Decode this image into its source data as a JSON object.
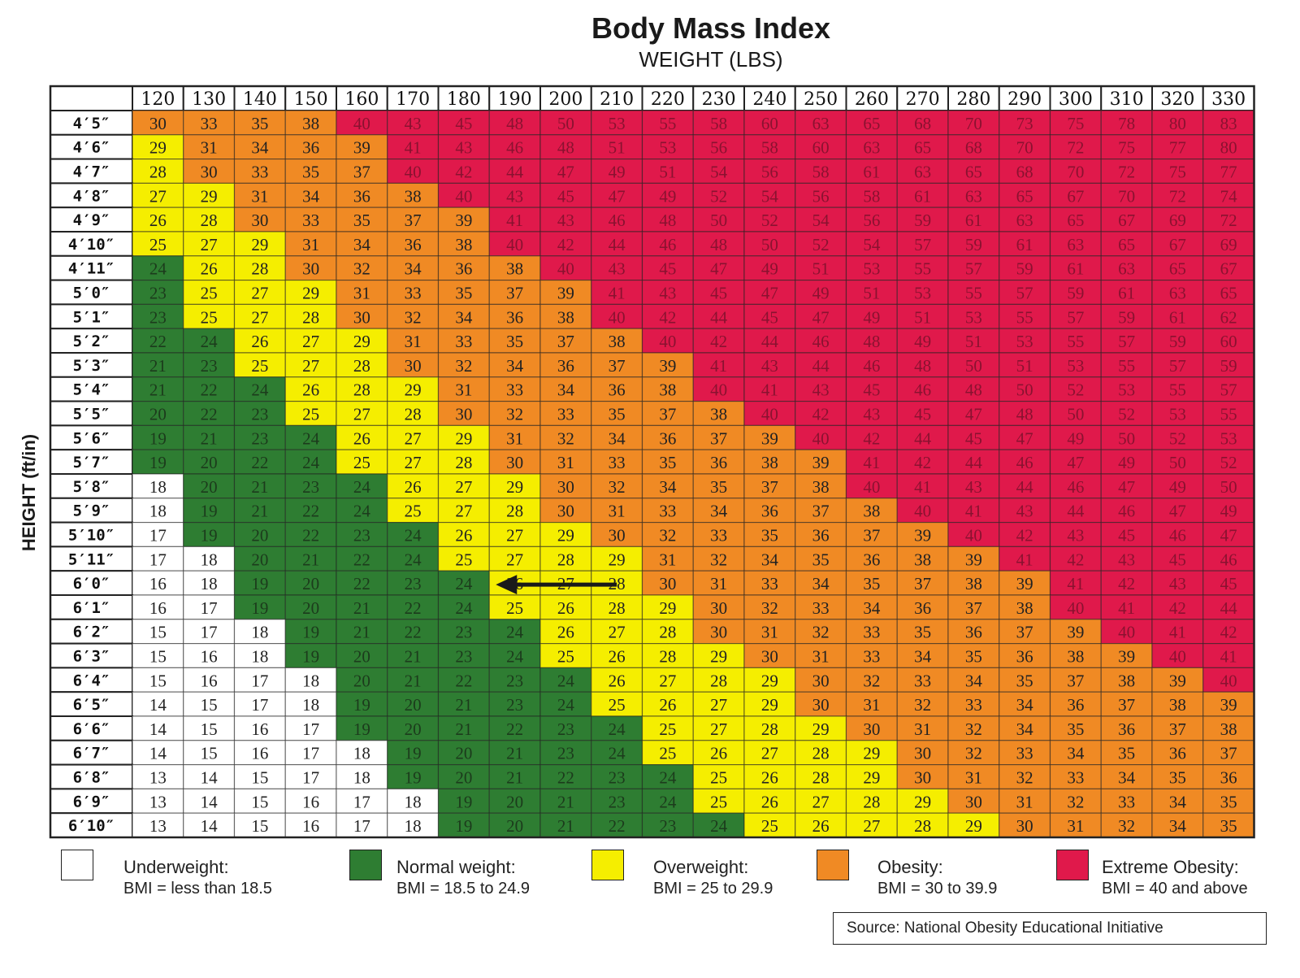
{
  "colors": {
    "underweight": "#ffffff",
    "normal": "#2e7d32",
    "overweight": "#f5ee00",
    "obesity": "#f08a24",
    "extreme_obesity": "#e0194b",
    "grid": "#222222"
  },
  "chart_data": {
    "type": "heatmap",
    "title": "Body Mass Index",
    "xlabel": "WEIGHT (LBS)",
    "ylabel": "HEIGHT (ft/in)",
    "weights": [
      "120",
      "130",
      "140",
      "150",
      "160",
      "170",
      "180",
      "190",
      "200",
      "210",
      "220",
      "230",
      "240",
      "250",
      "260",
      "270",
      "280",
      "290",
      "300",
      "310",
      "320",
      "330"
    ],
    "heights": [
      "4′5″",
      "4′6″",
      "4′7″",
      "4′8″",
      "4′9″",
      "4′10″",
      "4′11″",
      "5′0″",
      "5′1″",
      "5′2″",
      "5′3″",
      "5′4″",
      "5′5″",
      "5′6″",
      "5′7″",
      "5′8″",
      "5′9″",
      "5′10″",
      "5′11″",
      "6′0″",
      "6′1″",
      "6′2″",
      "6′3″",
      "6′4″",
      "6′5″",
      "6′6″",
      "6′7″",
      "6′8″",
      "6′9″",
      "6′10″"
    ],
    "values": [
      [
        30,
        33,
        35,
        38,
        40,
        43,
        45,
        48,
        50,
        53,
        55,
        58,
        60,
        63,
        65,
        68,
        70,
        73,
        75,
        78,
        80,
        83
      ],
      [
        29,
        31,
        34,
        36,
        39,
        41,
        43,
        46,
        48,
        51,
        53,
        56,
        58,
        60,
        63,
        65,
        68,
        70,
        72,
        75,
        77,
        80
      ],
      [
        28,
        30,
        33,
        35,
        37,
        40,
        42,
        44,
        47,
        49,
        51,
        54,
        56,
        58,
        61,
        63,
        65,
        68,
        70,
        72,
        75,
        77
      ],
      [
        27,
        29,
        31,
        34,
        36,
        38,
        40,
        43,
        45,
        47,
        49,
        52,
        54,
        56,
        58,
        61,
        63,
        65,
        67,
        70,
        72,
        74
      ],
      [
        26,
        28,
        30,
        33,
        35,
        37,
        39,
        41,
        43,
        46,
        48,
        50,
        52,
        54,
        56,
        59,
        61,
        63,
        65,
        67,
        69,
        72
      ],
      [
        25,
        27,
        29,
        31,
        34,
        36,
        38,
        40,
        42,
        44,
        46,
        48,
        50,
        52,
        54,
        57,
        59,
        61,
        63,
        65,
        67,
        69
      ],
      [
        24,
        26,
        28,
        30,
        32,
        34,
        36,
        38,
        40,
        43,
        45,
        47,
        49,
        51,
        53,
        55,
        57,
        59,
        61,
        63,
        65,
        67
      ],
      [
        23,
        25,
        27,
        29,
        31,
        33,
        35,
        37,
        39,
        41,
        43,
        45,
        47,
        49,
        51,
        53,
        55,
        57,
        59,
        61,
        63,
        65
      ],
      [
        23,
        25,
        27,
        28,
        30,
        32,
        34,
        36,
        38,
        40,
        42,
        44,
        45,
        47,
        49,
        51,
        53,
        55,
        57,
        59,
        61,
        62
      ],
      [
        22,
        24,
        26,
        27,
        29,
        31,
        33,
        35,
        37,
        38,
        40,
        42,
        44,
        46,
        48,
        49,
        51,
        53,
        55,
        57,
        59,
        60
      ],
      [
        21,
        23,
        25,
        27,
        28,
        30,
        32,
        34,
        36,
        37,
        39,
        41,
        43,
        44,
        46,
        48,
        50,
        51,
        53,
        55,
        57,
        59
      ],
      [
        21,
        22,
        24,
        26,
        28,
        29,
        31,
        33,
        34,
        36,
        38,
        40,
        41,
        43,
        45,
        46,
        48,
        50,
        52,
        53,
        55,
        57
      ],
      [
        20,
        22,
        23,
        25,
        27,
        28,
        30,
        32,
        33,
        35,
        37,
        38,
        40,
        42,
        43,
        45,
        47,
        48,
        50,
        52,
        53,
        55
      ],
      [
        19,
        21,
        23,
        24,
        26,
        27,
        29,
        31,
        32,
        34,
        36,
        37,
        39,
        40,
        42,
        44,
        45,
        47,
        49,
        50,
        52,
        53
      ],
      [
        19,
        20,
        22,
        24,
        25,
        27,
        28,
        30,
        31,
        33,
        35,
        36,
        38,
        39,
        41,
        42,
        44,
        46,
        47,
        49,
        50,
        52
      ],
      [
        18,
        20,
        21,
        23,
        24,
        26,
        27,
        29,
        30,
        32,
        34,
        35,
        37,
        38,
        40,
        41,
        43,
        44,
        46,
        47,
        49,
        50
      ],
      [
        18,
        19,
        21,
        22,
        24,
        25,
        27,
        28,
        30,
        31,
        33,
        34,
        36,
        37,
        38,
        40,
        41,
        43,
        44,
        46,
        47,
        49
      ],
      [
        17,
        19,
        20,
        22,
        23,
        24,
        26,
        27,
        29,
        30,
        32,
        33,
        35,
        36,
        37,
        39,
        40,
        42,
        43,
        45,
        46,
        47
      ],
      [
        17,
        18,
        20,
        21,
        22,
        24,
        25,
        27,
        28,
        29,
        31,
        32,
        34,
        35,
        36,
        38,
        39,
        41,
        42,
        43,
        45,
        46
      ],
      [
        16,
        18,
        19,
        20,
        22,
        23,
        24,
        26,
        27,
        28,
        30,
        31,
        33,
        34,
        35,
        37,
        38,
        39,
        41,
        42,
        43,
        45
      ],
      [
        16,
        17,
        19,
        20,
        21,
        22,
        24,
        25,
        26,
        28,
        29,
        30,
        32,
        33,
        34,
        36,
        37,
        38,
        40,
        41,
        42,
        44
      ],
      [
        15,
        17,
        18,
        19,
        21,
        22,
        23,
        24,
        26,
        27,
        28,
        30,
        31,
        32,
        33,
        35,
        36,
        37,
        39,
        40,
        41,
        42
      ],
      [
        15,
        16,
        18,
        19,
        20,
        21,
        23,
        24,
        25,
        26,
        28,
        29,
        30,
        31,
        33,
        34,
        35,
        36,
        38,
        39,
        40,
        41
      ],
      [
        15,
        16,
        17,
        18,
        20,
        21,
        22,
        23,
        24,
        26,
        27,
        28,
        29,
        30,
        32,
        33,
        34,
        35,
        37,
        38,
        39,
        40
      ],
      [
        14,
        15,
        17,
        18,
        19,
        20,
        21,
        23,
        24,
        25,
        26,
        27,
        29,
        30,
        31,
        32,
        33,
        34,
        36,
        37,
        38,
        39
      ],
      [
        14,
        15,
        16,
        17,
        19,
        20,
        21,
        22,
        23,
        24,
        25,
        27,
        28,
        29,
        30,
        31,
        32,
        34,
        35,
        36,
        37,
        38
      ],
      [
        14,
        15,
        16,
        17,
        18,
        19,
        20,
        21,
        23,
        24,
        25,
        26,
        27,
        28,
        29,
        30,
        32,
        33,
        34,
        35,
        36,
        37
      ],
      [
        13,
        14,
        15,
        17,
        18,
        19,
        20,
        21,
        22,
        23,
        24,
        25,
        26,
        28,
        29,
        30,
        31,
        32,
        33,
        34,
        35,
        36
      ],
      [
        13,
        14,
        15,
        16,
        17,
        18,
        19,
        20,
        21,
        23,
        24,
        25,
        26,
        27,
        28,
        29,
        30,
        31,
        32,
        33,
        34,
        35
      ],
      [
        13,
        14,
        15,
        16,
        17,
        18,
        19,
        20,
        21,
        22,
        23,
        24,
        25,
        26,
        27,
        28,
        29,
        30,
        31,
        32,
        34,
        35
      ]
    ],
    "annotation": {
      "type": "arrow",
      "row": "6′0″",
      "from_weight": "210",
      "to_weight": "180"
    },
    "legend_placement": "bottom"
  },
  "legend": [
    {
      "key": "underweight",
      "label": "Underweight:",
      "range": "BMI = less than 18.5"
    },
    {
      "key": "normal",
      "label": "Normal weight:",
      "range": "BMI = 18.5 to 24.9"
    },
    {
      "key": "overweight",
      "label": "Overweight:",
      "range": "BMI = 25 to 29.9"
    },
    {
      "key": "obesity",
      "label": "Obesity:",
      "range": "BMI = 30 to 39.9"
    },
    {
      "key": "extreme_obesity",
      "label": "Extreme Obesity:",
      "range": "BMI = 40 and above"
    }
  ],
  "source": "Source: National Obesity Educational Initiative"
}
